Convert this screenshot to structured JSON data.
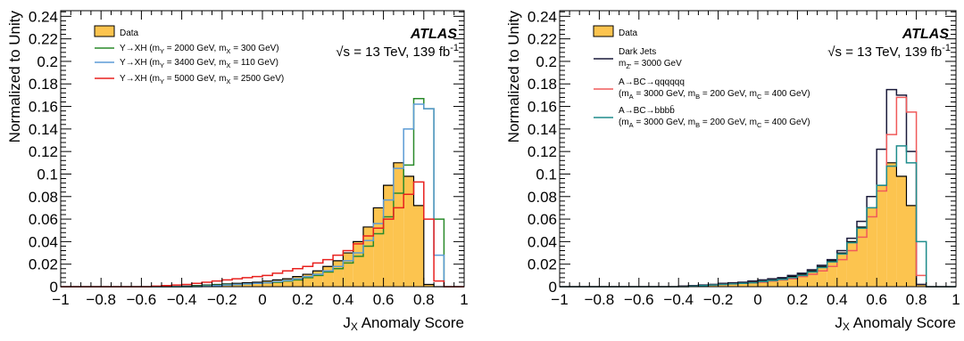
{
  "chart_data": [
    {
      "type": "histogram",
      "xlabel": "J",
      "xlabel_sub": "X",
      "xlabel_rest": " Anomaly Score",
      "ylabel": "Normalized to Unity",
      "xlim": [
        -1,
        1
      ],
      "ylim": [
        0,
        0.245
      ],
      "xticks": [
        -1,
        -0.8,
        -0.6,
        -0.4,
        -0.2,
        0,
        0.2,
        0.4,
        0.6,
        0.8,
        1
      ],
      "xtick_labels": [
        "−1",
        "−0.8",
        "−0.6",
        "−0.4",
        "−0.2",
        "0",
        "0.2",
        "0.4",
        "0.6",
        "0.8",
        "1"
      ],
      "yticks": [
        0,
        0.02,
        0.04,
        0.06,
        0.08,
        0.1,
        0.12,
        0.14,
        0.16,
        0.18,
        0.2,
        0.22,
        0.24
      ],
      "ytick_labels": [
        "0",
        "0.02",
        "0.04",
        "0.06",
        "0.08",
        "0.1",
        "0.12",
        "0.14",
        "0.16",
        "0.18",
        "0.2",
        "0.22",
        "0.24"
      ],
      "atlas_label": "ATLAS",
      "energy_label": "√s = 13 TeV, 139 fb",
      "energy_sup": "-1",
      "legend_position": "top-left",
      "bin_edges": [
        -1.0,
        -0.95,
        -0.9,
        -0.85,
        -0.8,
        -0.75,
        -0.7,
        -0.65,
        -0.6,
        -0.55,
        -0.5,
        -0.45,
        -0.4,
        -0.35,
        -0.3,
        -0.25,
        -0.2,
        -0.15,
        -0.1,
        -0.05,
        0.0,
        0.05,
        0.1,
        0.15,
        0.2,
        0.25,
        0.3,
        0.35,
        0.4,
        0.45,
        0.5,
        0.55,
        0.6,
        0.65,
        0.7,
        0.75,
        0.8,
        0.85,
        0.9,
        0.95,
        1.0
      ],
      "series": [
        {
          "name": "Data",
          "style": "filled",
          "color": "#fcc44f",
          "values": [
            0,
            0,
            0,
            0,
            0,
            0,
            0,
            0,
            0,
            0,
            0,
            0,
            0.0005,
            0.001,
            0.0015,
            0.002,
            0.0025,
            0.003,
            0.0035,
            0.004,
            0.005,
            0.006,
            0.007,
            0.009,
            0.011,
            0.014,
            0.018,
            0.023,
            0.03,
            0.04,
            0.053,
            0.07,
            0.09,
            0.11,
            0.098,
            0.072,
            0.002,
            0,
            0,
            0
          ]
        },
        {
          "name_parts": [
            "Y→XH (m",
            "Y",
            " = 2000 GeV, m",
            "X",
            " = 300 GeV)"
          ],
          "style": "line",
          "color": "#2a8a2a",
          "values": [
            0,
            0,
            0,
            0,
            0,
            0,
            0,
            0,
            0,
            0,
            0,
            0,
            0,
            0.0005,
            0.001,
            0.0015,
            0.002,
            0.002,
            0.0025,
            0.003,
            0.0035,
            0.004,
            0.005,
            0.006,
            0.008,
            0.01,
            0.013,
            0.016,
            0.021,
            0.027,
            0.036,
            0.047,
            0.062,
            0.083,
            0.108,
            0.167,
            0.158,
            0.06,
            0,
            0
          ]
        },
        {
          "name_parts": [
            "Y→XH (m",
            "Y",
            " = 3400 GeV, m",
            "X",
            " = 110 GeV)"
          ],
          "style": "line",
          "color": "#5b9bd5",
          "values": [
            0,
            0,
            0,
            0,
            0,
            0,
            0,
            0,
            0,
            0,
            0,
            0,
            0,
            0,
            0.0005,
            0.001,
            0.0015,
            0.002,
            0.0025,
            0.003,
            0.0035,
            0.0045,
            0.0055,
            0.007,
            0.009,
            0.011,
            0.014,
            0.018,
            0.023,
            0.03,
            0.041,
            0.056,
            0.077,
            0.105,
            0.14,
            0.162,
            0.158,
            0.028,
            0,
            0
          ]
        },
        {
          "name_parts": [
            "Y→XH (m",
            "Y",
            " = 5000 GeV, m",
            "X",
            " = 2500 GeV)"
          ],
          "style": "line",
          "color": "#e8201e",
          "values": [
            0,
            0,
            0,
            0,
            0,
            0,
            0,
            0,
            0,
            0.0005,
            0.001,
            0.0015,
            0.002,
            0.003,
            0.004,
            0.005,
            0.006,
            0.007,
            0.008,
            0.009,
            0.01,
            0.012,
            0.014,
            0.016,
            0.018,
            0.021,
            0.024,
            0.028,
            0.032,
            0.038,
            0.045,
            0.052,
            0.06,
            0.07,
            0.082,
            0.093,
            0.06,
            0.005,
            0,
            0
          ]
        }
      ]
    },
    {
      "type": "histogram",
      "xlabel": "J",
      "xlabel_sub": "X",
      "xlabel_rest": " Anomaly Score",
      "ylabel": "Normalized to Unity",
      "xlim": [
        -1,
        1
      ],
      "ylim": [
        0,
        0.245
      ],
      "xticks": [
        -1,
        -0.8,
        -0.6,
        -0.4,
        -0.2,
        0,
        0.2,
        0.4,
        0.6,
        0.8,
        1
      ],
      "xtick_labels": [
        "−1",
        "−0.8",
        "−0.6",
        "−0.4",
        "−0.2",
        "0",
        "0.2",
        "0.4",
        "0.6",
        "0.8",
        "1"
      ],
      "yticks": [
        0,
        0.02,
        0.04,
        0.06,
        0.08,
        0.1,
        0.12,
        0.14,
        0.16,
        0.18,
        0.2,
        0.22,
        0.24
      ],
      "ytick_labels": [
        "0",
        "0.02",
        "0.04",
        "0.06",
        "0.08",
        "0.1",
        "0.12",
        "0.14",
        "0.16",
        "0.18",
        "0.2",
        "0.22",
        "0.24"
      ],
      "atlas_label": "ATLAS",
      "energy_label": "√s = 13 TeV, 139 fb",
      "energy_sup": "-1",
      "legend_position": "top-left",
      "bin_edges": [
        -1.0,
        -0.95,
        -0.9,
        -0.85,
        -0.8,
        -0.75,
        -0.7,
        -0.65,
        -0.6,
        -0.55,
        -0.5,
        -0.45,
        -0.4,
        -0.35,
        -0.3,
        -0.25,
        -0.2,
        -0.15,
        -0.1,
        -0.05,
        0.0,
        0.05,
        0.1,
        0.15,
        0.2,
        0.25,
        0.3,
        0.35,
        0.4,
        0.45,
        0.5,
        0.55,
        0.6,
        0.65,
        0.7,
        0.75,
        0.8,
        0.85,
        0.9,
        0.95,
        1.0
      ],
      "series": [
        {
          "name": "Data",
          "style": "filled",
          "color": "#fcc44f",
          "values": [
            0,
            0,
            0,
            0,
            0,
            0,
            0,
            0,
            0,
            0,
            0,
            0,
            0.0005,
            0.001,
            0.0015,
            0.002,
            0.0025,
            0.003,
            0.0035,
            0.004,
            0.005,
            0.006,
            0.007,
            0.009,
            0.011,
            0.014,
            0.018,
            0.023,
            0.03,
            0.04,
            0.053,
            0.07,
            0.09,
            0.11,
            0.098,
            0.072,
            0.002,
            0,
            0,
            0
          ]
        },
        {
          "name_lines": [
            [
              "Dark Jets"
            ],
            [
              "m",
              "Z'",
              " = 3000 GeV"
            ]
          ],
          "style": "line",
          "color": "#1a1a3a",
          "values": [
            0,
            0,
            0,
            0,
            0,
            0,
            0,
            0,
            0,
            0,
            0,
            0,
            0.0005,
            0.001,
            0.0015,
            0.002,
            0.003,
            0.0035,
            0.004,
            0.005,
            0.006,
            0.007,
            0.008,
            0.01,
            0.012,
            0.015,
            0.019,
            0.024,
            0.032,
            0.043,
            0.058,
            0.08,
            0.122,
            0.175,
            0.17,
            0.12,
            0.002,
            0,
            0,
            0
          ]
        },
        {
          "name_lines": [
            [
              "A→BC→qqqqqq"
            ],
            [
              "(m",
              "A",
              " = 3000 GeV, m",
              "B",
              " = 200 GeV, m",
              "C",
              " = 400 GeV)"
            ]
          ],
          "style": "line",
          "color": "#f05a5a",
          "values": [
            0,
            0,
            0,
            0,
            0,
            0,
            0,
            0,
            0,
            0,
            0,
            0,
            0,
            0.0005,
            0.001,
            0.0015,
            0.002,
            0.0025,
            0.003,
            0.0035,
            0.004,
            0.005,
            0.006,
            0.007,
            0.009,
            0.011,
            0.014,
            0.018,
            0.024,
            0.032,
            0.044,
            0.062,
            0.085,
            0.135,
            0.168,
            0.155,
            0.01,
            0,
            0,
            0
          ]
        },
        {
          "name_lines": [
            [
              "A→BC→bbbb̄"
            ],
            [
              "(m",
              "A",
              " = 3000 GeV, m",
              "B",
              " = 200 GeV, m",
              "C",
              " = 400 GeV)"
            ]
          ],
          "style": "line",
          "color": "#1e8c8c",
          "values": [
            0,
            0,
            0,
            0,
            0,
            0,
            0,
            0,
            0,
            0,
            0,
            0,
            0,
            0.0005,
            0.001,
            0.0015,
            0.002,
            0.0025,
            0.003,
            0.0035,
            0.0045,
            0.0055,
            0.0065,
            0.008,
            0.01,
            0.013,
            0.017,
            0.022,
            0.029,
            0.039,
            0.052,
            0.07,
            0.09,
            0.107,
            0.125,
            0.11,
            0.04,
            0,
            0,
            0
          ]
        }
      ]
    }
  ]
}
